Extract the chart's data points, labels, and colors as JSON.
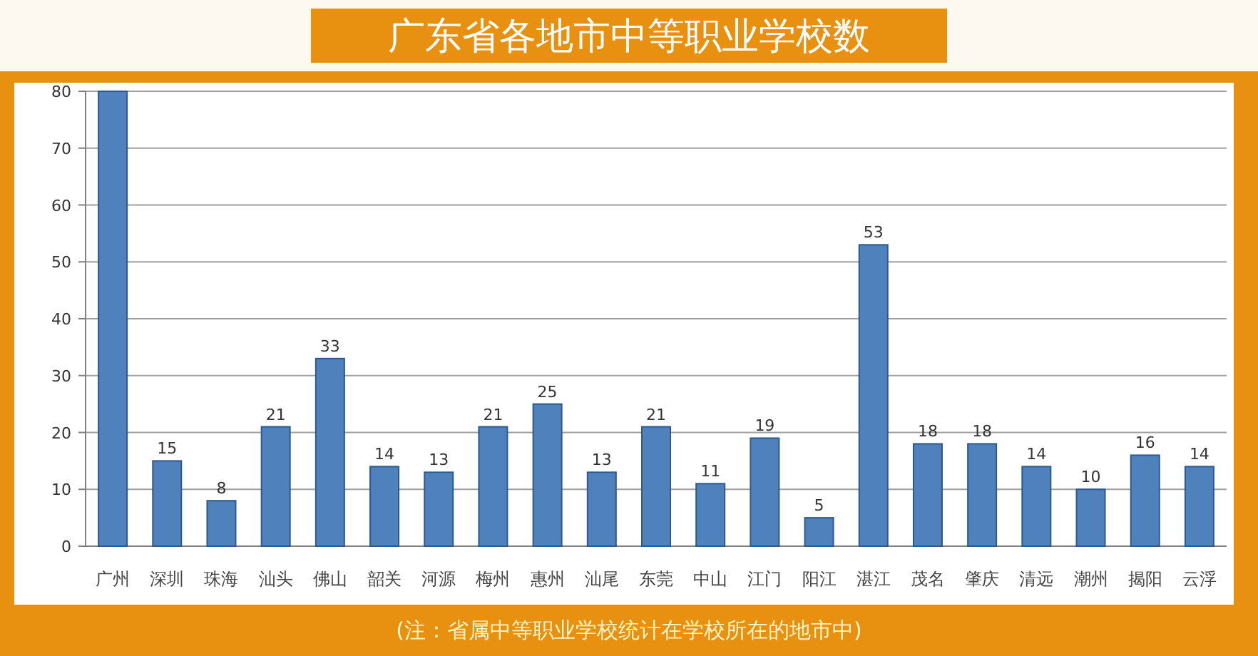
{
  "chart_data": {
    "type": "bar",
    "title": "广东省各地市中等职业学校数",
    "annotations": [
      "(注：省属中等职业学校统计在学校所在的地市中)"
    ],
    "categories": [
      "广州",
      "深圳",
      "珠海",
      "汕头",
      "佛山",
      "韶关",
      "河源",
      "梅州",
      "惠州",
      "汕尾",
      "东莞",
      "中山",
      "江门",
      "阳江",
      "湛江",
      "茂名",
      "肇庆",
      "清远",
      "潮州",
      "揭阳",
      "云浮"
    ],
    "values": [
      80,
      15,
      8,
      21,
      33,
      14,
      13,
      21,
      25,
      13,
      21,
      11,
      19,
      5,
      53,
      18,
      18,
      14,
      10,
      16,
      14
    ],
    "value_labels": [
      null,
      "15",
      "8",
      "21",
      "33",
      "14",
      "13",
      "21",
      "25",
      "13",
      "21",
      "11",
      "19",
      "5",
      "53",
      "18",
      "18",
      "14",
      "10",
      "16",
      "14"
    ],
    "color": "#4f81bd",
    "ylim": [
      0,
      80
    ],
    "yticks": [
      0,
      10,
      20,
      30,
      40,
      50,
      60,
      70,
      80
    ],
    "grid": "y"
  }
}
